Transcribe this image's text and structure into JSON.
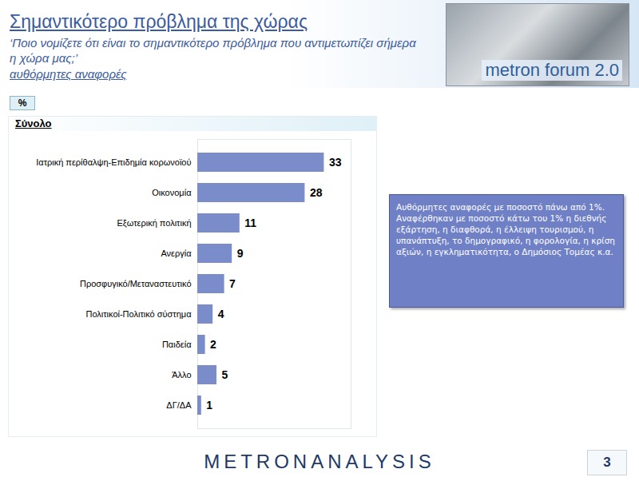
{
  "chart_data": {
    "type": "bar",
    "orientation": "horizontal",
    "title": "Σημαντικότερο πρόβλημα της χώρας",
    "subtitle": "‘Ποιο νομίζετε ότι  είναι το σημαντικότερο πρόβλημα που αντιμετωπίζει σήμερα η χώρα μας;’",
    "annotations": {
      "method": "αυθόρμητες αναφορές",
      "unit": "%",
      "panel": "Σύνολο",
      "note": "Αυθόρμητες αναφορές με ποσοστό πάνω από 1%. Αναφέρθηκαν με ποσοστό κάτω του 1% η διεθνής εξάρτηση, η διαφθορά, η έλλειψη τουρισμού, η υπανάπτυξη, το δημογραφικό, η φορολογία, η κρίση αξιών, η εγκληματικότητα, ο Δημόσιος Τομέας κ.α.",
      "logo": "metron forum 2.0",
      "brand": "METRONANALYSIS",
      "page": "3"
    },
    "categories": [
      "Ιατρική περίθαλψη-Επιδημία κορωνοϊού",
      "Οικονομία",
      "Εξωτερική πολιτική",
      "Ανεργία",
      "Προσφυγικό/Μεταναστευτικό",
      "Πολιτικοί-Πολιτικό σύστημα",
      "Παιδεία",
      "Άλλο",
      "ΔΓ/ΔΑ"
    ],
    "values": [
      33,
      28,
      11,
      9,
      7,
      4,
      2,
      5,
      1
    ],
    "color": "#7b8ccb",
    "xlim": [
      0,
      40
    ],
    "data_labels": true,
    "tick_labels": "y",
    "grid": false
  }
}
